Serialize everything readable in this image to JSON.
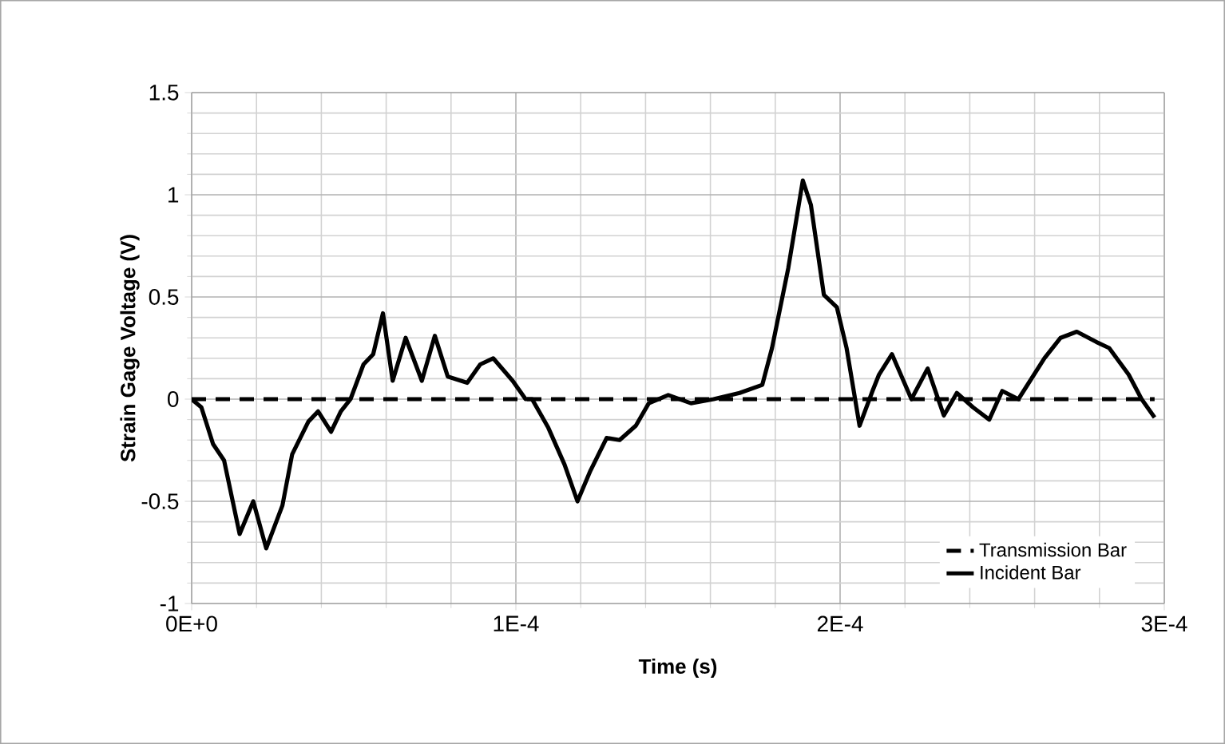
{
  "chart_data": {
    "type": "line",
    "xlabel": "Time (s)",
    "ylabel": "Strain Gage Voltage (V)",
    "xlim": [
      0,
      0.0003
    ],
    "ylim": [
      -1,
      1.5
    ],
    "xticks": [
      {
        "value": 0,
        "label": "0E+0"
      },
      {
        "value": 0.0001,
        "label": "1E-4"
      },
      {
        "value": 0.0002,
        "label": "2E-4"
      },
      {
        "value": 0.0003,
        "label": "3E-4"
      }
    ],
    "yticks": [
      -1,
      -0.5,
      0,
      0.5,
      1,
      1.5
    ],
    "grid": true,
    "legend": "bottom right",
    "marker": "none",
    "series": [
      {
        "name": "Transmission Bar",
        "color": "#000000",
        "line_style": "dashed",
        "x": [
          0,
          0.000297
        ],
        "values": [
          0,
          0
        ]
      },
      {
        "name": "Incident Bar",
        "color": "#000000",
        "line_style": "solid",
        "x": [
          0,
          3e-06,
          6.6e-06,
          1e-05,
          1.48e-05,
          1.9e-05,
          2.3e-05,
          2.8e-05,
          3.1e-05,
          3.6e-05,
          3.9e-05,
          4.3e-05,
          4.6e-05,
          4.9e-05,
          5.3e-05,
          5.6e-05,
          5.9e-05,
          6.2e-05,
          6.6e-05,
          7.1e-05,
          7.5e-05,
          7.9e-05,
          8.5e-05,
          8.9e-05,
          9.3e-05,
          9.9e-05,
          0.000103,
          0.000105,
          0.00011,
          0.000115,
          0.000119,
          0.000123,
          0.000128,
          0.000132,
          0.000137,
          0.000141,
          0.000147,
          0.000154,
          0.000161,
          0.000169,
          0.000176,
          0.000179,
          0.000184,
          0.0001885,
          0.000191,
          0.000195,
          0.000199,
          0.000202,
          0.000206,
          0.00021,
          0.000212,
          0.000216,
          0.000222,
          0.000227,
          0.000232,
          0.000236,
          0.000241,
          0.000246,
          0.00025,
          0.000255,
          0.000263,
          0.000268,
          0.000273,
          0.000279,
          0.000283,
          0.000289,
          0.000293,
          0.000297
        ],
        "values": [
          0,
          -0.04,
          -0.22,
          -0.3,
          -0.66,
          -0.5,
          -0.73,
          -0.52,
          -0.27,
          -0.11,
          -0.06,
          -0.16,
          -0.06,
          0,
          0.17,
          0.22,
          0.42,
          0.09,
          0.3,
          0.09,
          0.31,
          0.11,
          0.08,
          0.17,
          0.2,
          0.09,
          0,
          0,
          -0.14,
          -0.32,
          -0.5,
          -0.35,
          -0.19,
          -0.2,
          -0.13,
          -0.02,
          0.02,
          -0.02,
          0,
          0.03,
          0.07,
          0.25,
          0.64,
          1.07,
          0.95,
          0.51,
          0.45,
          0.25,
          -0.13,
          0.04,
          0.12,
          0.22,
          0,
          0.15,
          -0.08,
          0.03,
          -0.04,
          -0.1,
          0.04,
          0,
          0.2,
          0.3,
          0.33,
          0.28,
          0.25,
          0.12,
          0,
          -0.09
        ]
      }
    ]
  }
}
